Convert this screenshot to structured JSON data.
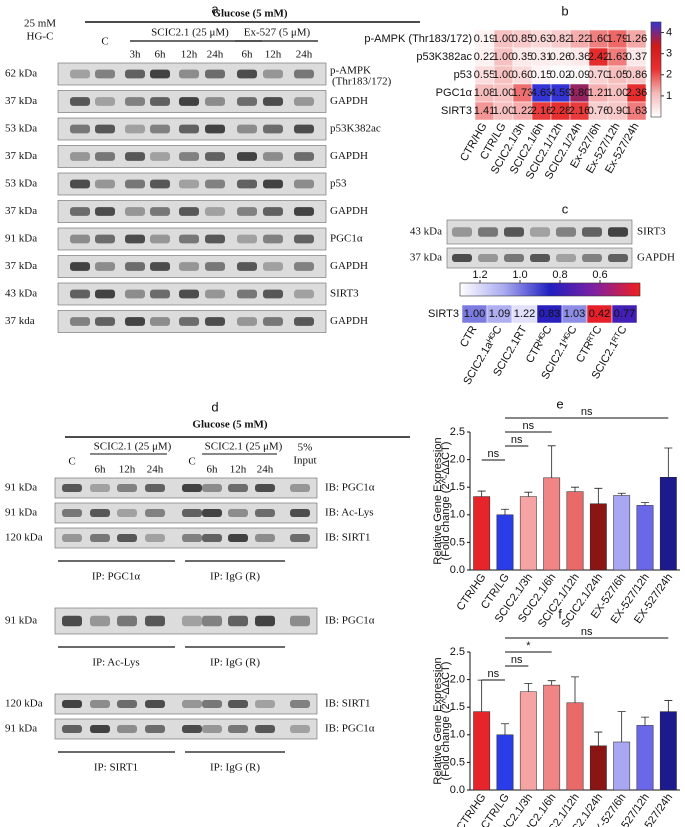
{
  "panel_a": {
    "label": "a",
    "header": "Glucose (5 mM)",
    "hg_control": [
      "25 mM",
      "HG-C"
    ],
    "control": "C",
    "group1": "SCIC2.1 (25 μM)",
    "group1_times": [
      "3h",
      "6h",
      "12h",
      "24h"
    ],
    "group2": "Ex-527 (5 μM)",
    "group2_times": [
      "6h",
      "12h",
      "24h"
    ],
    "rows": [
      {
        "size": "62 kDa",
        "protein": "p-AMPK",
        "note": "(Thr183/172)"
      },
      {
        "size": "37 kDa",
        "protein": "GAPDH"
      },
      {
        "size": "53 kDa",
        "protein": "p53K382ac"
      },
      {
        "size": "37 kDa",
        "protein": "GAPDH"
      },
      {
        "size": "53 kDa",
        "protein": "p53"
      },
      {
        "size": "37 kDa",
        "protein": "GAPDH"
      },
      {
        "size": "91 kDa",
        "protein": "PGC1α"
      },
      {
        "size": "37 kDa",
        "protein": "GAPDH"
      },
      {
        "size": "43 kDa",
        "protein": "SIRT3"
      },
      {
        "size": "37 kda",
        "protein": "GAPDH"
      }
    ]
  },
  "panel_c_blot": {
    "label": "c",
    "rows": [
      {
        "size": "43 kDa",
        "protein": "SIRT3"
      },
      {
        "size": "37 kDa",
        "protein": "GAPDH"
      }
    ]
  },
  "panel_d": {
    "label": "d",
    "header": "Glucose (5 mM)",
    "groups": [
      {
        "control": "C",
        "name": "SCIC2.1 (25 μM)",
        "times": [
          "6h",
          "12h",
          "24h"
        ]
      },
      {
        "control": "C",
        "name": "SCIC2.1 (25 μM)",
        "times": [
          "6h",
          "12h",
          "24h"
        ]
      }
    ],
    "input": [
      "5%",
      "Input"
    ],
    "sections": [
      {
        "rows": [
          {
            "size": "91 kDa",
            "ib": "IB: PGC1α"
          },
          {
            "size": "91 kDa",
            "ib": "IB: Ac-Lys"
          },
          {
            "size": "120 kDa",
            "ib": "IB: SIRT1"
          }
        ],
        "ip": [
          "IP: PGC1α",
          "IP: IgG (R)"
        ]
      },
      {
        "rows": [
          {
            "size": "91 kDa",
            "ib": "IB: PGC1α"
          }
        ],
        "ip": [
          "IP: Ac-Lys",
          "IP: IgG (R)"
        ]
      },
      {
        "rows": [
          {
            "size": "120 kDa",
            "ib": "IB: SIRT1"
          },
          {
            "size": "91 kDa",
            "ib": "IB: PGC1α"
          }
        ],
        "ip": [
          "IP: SIRT1",
          "IP: IgG (R)"
        ]
      }
    ]
  },
  "chart_data": [
    {
      "type": "heatmap",
      "label": "b",
      "rows": [
        "p-AMPK (Thr183/172)",
        "p53K382ac",
        "p53",
        "PGC1α",
        "SIRT3"
      ],
      "columns": [
        "CTR/HG",
        "CTR/LG",
        "SCIC2.1/3h",
        "SCIC2.1/6h",
        "SCIC2.1/12h",
        "SCIC2.1/24h",
        "Ex-527/6h",
        "Ex-527/12h",
        "Ex-527/24h"
      ],
      "values": [
        [
          0.19,
          1,
          0.85,
          0.63,
          0.82,
          1.22,
          1.6,
          1.79,
          1.26
        ],
        [
          0.22,
          1,
          0.35,
          0.31,
          0.26,
          0.36,
          2.42,
          1.63,
          0.37
        ],
        [
          0.55,
          1,
          0.6,
          0.15,
          0.02,
          0.09,
          0.7,
          1.05,
          0.86
        ],
        [
          1.08,
          1,
          1.73,
          4.63,
          4.59,
          3.8,
          1.21,
          1,
          2.36
        ],
        [
          1.41,
          1,
          1.22,
          2.16,
          2.28,
          2.16,
          0.76,
          0.9,
          1.63
        ]
      ],
      "value_labels": [
        [
          "0.19",
          "1.00",
          "0.85",
          "0.63",
          "0.82",
          "1.22",
          "1.60",
          "1.79",
          "1.26"
        ],
        [
          "0.22",
          "1.00",
          "0.35",
          "0.31",
          "0.26",
          "0.36",
          "2.42",
          "1.63",
          "0.37"
        ],
        [
          "0.55",
          "1.00",
          "0.60",
          "0.15",
          "0.02",
          "0.09",
          "0.70",
          "1.05",
          "0.86"
        ],
        [
          "1.08",
          "1.00",
          "1.73",
          "4.63",
          "4.59",
          "3.80",
          "1.21",
          "1.00",
          "2.36"
        ],
        [
          "1.41",
          "1.00",
          "1.22",
          "2.16",
          "2.28",
          "2.16",
          "0.76",
          "0.90",
          "1.63"
        ]
      ],
      "clim": [
        0,
        4.5
      ],
      "colors": [
        "#ffffff",
        "#f6b9b9",
        "#e83030",
        "#d01818",
        "#3434d4"
      ],
      "cticks": [
        1,
        2,
        3,
        4
      ]
    },
    {
      "type": "heatmap",
      "rows": [
        "SIRT3"
      ],
      "columns": [
        "CTR",
        "SCIC2.1aᴴᴳC",
        "SCIC2.1RT",
        "CTRᴴᴳC",
        "SCIC2.1ᴴᴳC",
        "CTRᴿᵀC",
        "SCIC2.1ᴿᵀC"
      ],
      "values": [
        [
          1,
          1.09,
          1.22,
          0.83,
          1.03,
          0.42,
          0.77
        ]
      ],
      "value_labels": [
        [
          "1.00",
          "1.09",
          "1.22",
          "0.83",
          "1.03",
          "0.42",
          "0.77"
        ]
      ],
      "clim": [
        1.3,
        0.4
      ],
      "colors": [
        "#ffffff",
        "#a8a8f0",
        "#2020c0",
        "#8020a0",
        "#f02020"
      ],
      "cticks": [
        1.2,
        {
          "value": 1,
          "label": "1.0"
        },
        0.8,
        0.6
      ]
    },
    {
      "type": "bar",
      "label": "e",
      "y_label": [
        "Relative Gene Expression",
        "(Fold change (2^-ΔΔCT)"
      ],
      "categories": [
        "CTR/HG",
        "CTR/LG",
        "SCIC2.1/3h",
        "SCIC2.1/6h",
        "SCIC2.1/12h",
        "SCIC2.1/24h",
        "EX-527/6h",
        "EX-527/12h",
        "EX-527/24h"
      ],
      "values": [
        1.33,
        1,
        1.33,
        1.67,
        1.42,
        1.2,
        1.35,
        1.17,
        1.68
      ],
      "errors": [
        0.1,
        0.1,
        0.08,
        0.58,
        0.08,
        0.28,
        0.04,
        0.05,
        0.53
      ],
      "colors": [
        "#e8242b",
        "#2a3de8",
        "#f5a3a3",
        "#f08585",
        "#ea6a6a",
        "#8b1414",
        "#a9a6f2",
        "#6a67e8",
        "#1c1a8c"
      ],
      "ylim": [
        0,
        2.5
      ],
      "yticks": [
        {
          "value": 0,
          "label": "0.0"
        },
        0.5,
        {
          "value": 1,
          "label": "1.0"
        },
        1.5,
        {
          "value": 2,
          "label": "2.0"
        },
        2.5
      ],
      "annotations": [
        {
          "from": "CTR/HG",
          "to": "CTR/LG",
          "label": "ns"
        },
        {
          "from": "CTR/LG",
          "to": "SCIC2.1/3h",
          "label": "ns"
        },
        {
          "from": "CTR/LG",
          "to": "SCIC2.1/6h",
          "label": "ns"
        },
        {
          "from": "CTR/LG",
          "to": "EX-527/24h",
          "label": "ns"
        }
      ]
    },
    {
      "type": "bar",
      "label": "f",
      "y_label": [
        "Relative Gene Expression",
        "(Fold change (2^-ΔΔCT)"
      ],
      "categories": [
        "CTR/HG",
        "CTR/LG",
        "SCIC2.1/3h",
        "SCIC2.1/6h",
        "SCIC2.1/12h",
        "SCIC2.1/24h",
        "EX-527/6h",
        "EX-527/12h",
        "EX-527/24h"
      ],
      "values": [
        1.42,
        1,
        1.78,
        1.9,
        1.58,
        0.8,
        0.87,
        1.17,
        1.42
      ],
      "errors": [
        0.57,
        0.2,
        0.15,
        0.08,
        0.47,
        0.25,
        0.55,
        0.15,
        0.2
      ],
      "colors": [
        "#e8242b",
        "#2a3de8",
        "#f5a3a3",
        "#f08585",
        "#ea6a6a",
        "#8b1414",
        "#a9a6f2",
        "#6a67e8",
        "#1c1a8c"
      ],
      "ylim": [
        0,
        2.5
      ],
      "yticks": [
        {
          "value": 0,
          "label": "0.0"
        },
        0.5,
        {
          "value": 1,
          "label": "1.0"
        },
        1.5,
        {
          "value": 2,
          "label": "2.0"
        },
        2.5
      ],
      "annotations": [
        {
          "from": "CTR/HG",
          "to": "CTR/LG",
          "label": "ns"
        },
        {
          "from": "CTR/LG",
          "to": "SCIC2.1/3h",
          "label": "ns"
        },
        {
          "from": "CTR/LG",
          "to": "SCIC2.1/6h",
          "label": "*"
        },
        {
          "from": "CTR/LG",
          "to": "EX-527/24h",
          "label": "ns"
        }
      ]
    }
  ]
}
